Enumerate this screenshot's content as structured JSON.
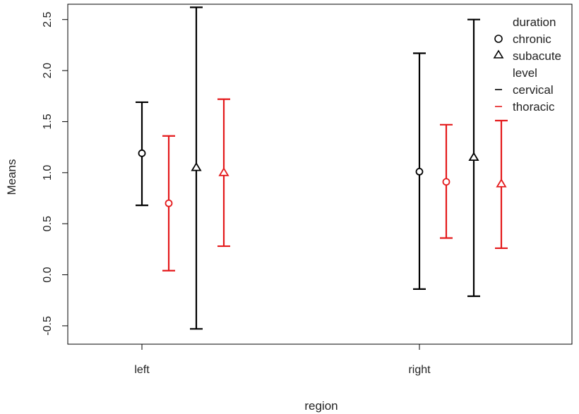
{
  "chart_data": {
    "type": "errorbar",
    "title": "",
    "xlabel": "region",
    "ylabel": "Means",
    "categories": [
      "left",
      "right"
    ],
    "y_ticks": [
      -0.5,
      0.0,
      0.5,
      1.0,
      1.5,
      2.0,
      2.5
    ],
    "y_tick_labels": [
      "-0.5",
      "0.0",
      "0.5",
      "1.0",
      "1.5",
      "2.0",
      "2.5"
    ],
    "ylim": [
      -0.68,
      2.65
    ],
    "legend": {
      "placement": "top-right",
      "title_duration": "duration",
      "title_level": "level",
      "duration_items": [
        {
          "label": "chronic",
          "marker": "circle"
        },
        {
          "label": "subacute",
          "marker": "triangle"
        }
      ],
      "level_items": [
        {
          "label": "cervical",
          "color": "#000000"
        },
        {
          "label": "thoracic",
          "color": "#e41a1c"
        }
      ]
    },
    "series": [
      {
        "region": "left",
        "duration": "chronic",
        "level": "cervical",
        "marker": "circle",
        "color": "#000000",
        "mean": 1.19,
        "lower": 0.68,
        "upper": 1.69
      },
      {
        "region": "left",
        "duration": "chronic",
        "level": "thoracic",
        "marker": "circle",
        "color": "#e41a1c",
        "mean": 0.7,
        "lower": 0.04,
        "upper": 1.36
      },
      {
        "region": "left",
        "duration": "subacute",
        "level": "cervical",
        "marker": "triangle",
        "color": "#000000",
        "mean": 1.05,
        "lower": -0.53,
        "upper": 2.62
      },
      {
        "region": "left",
        "duration": "subacute",
        "level": "thoracic",
        "marker": "triangle",
        "color": "#e41a1c",
        "mean": 1.0,
        "lower": 0.28,
        "upper": 1.72
      },
      {
        "region": "right",
        "duration": "chronic",
        "level": "cervical",
        "marker": "circle",
        "color": "#000000",
        "mean": 1.01,
        "lower": -0.14,
        "upper": 2.17
      },
      {
        "region": "right",
        "duration": "chronic",
        "level": "thoracic",
        "marker": "circle",
        "color": "#e41a1c",
        "mean": 0.91,
        "lower": 0.36,
        "upper": 1.47
      },
      {
        "region": "right",
        "duration": "subacute",
        "level": "cervical",
        "marker": "triangle",
        "color": "#000000",
        "mean": 1.15,
        "lower": -0.21,
        "upper": 2.5
      },
      {
        "region": "right",
        "duration": "subacute",
        "level": "thoracic",
        "marker": "triangle",
        "color": "#e41a1c",
        "mean": 0.89,
        "lower": 0.26,
        "upper": 1.51
      }
    ]
  }
}
